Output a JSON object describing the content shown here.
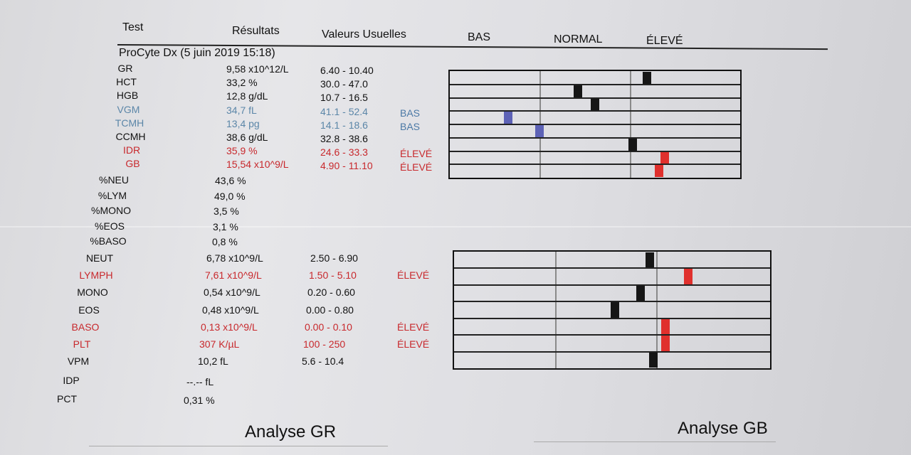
{
  "header": {
    "test": "Test",
    "resultats": "Résultats",
    "valeurs": "Valeurs Usuelles",
    "bas": "BAS",
    "normal": "NORMAL",
    "eleve": "ÉLEVÉ"
  },
  "instrument": "ProCyte Dx (5 juin 2019 15:18)",
  "rbc_rows": [
    {
      "name": "GR",
      "value": "9,58 x10^12/L",
      "range": "6.40 - 10.40",
      "flag": "",
      "status": "normal",
      "marker": 0.68
    },
    {
      "name": "HCT",
      "value": "33,2 %",
      "range": "30.0 - 47.0",
      "flag": "",
      "status": "normal",
      "marker": 0.44
    },
    {
      "name": "HGB",
      "value": "12,8 g/dL",
      "range": "10.7 - 16.5",
      "flag": "",
      "status": "normal",
      "marker": 0.5
    },
    {
      "name": "VGM",
      "value": "34,7 fL",
      "range": "41.1 - 52.4",
      "flag": "BAS",
      "status": "low",
      "marker": 0.2
    },
    {
      "name": "TCMH",
      "value": "13,4 pg",
      "range": "14.1 - 18.6",
      "flag": "BAS",
      "status": "low",
      "marker": 0.31
    },
    {
      "name": "CCMH",
      "value": "38,6 g/dL",
      "range": "32.8 - 38.6",
      "flag": "",
      "status": "normal",
      "marker": 0.63
    },
    {
      "name": "IDR",
      "value": "35,9 %",
      "range": "24.6 - 33.3",
      "flag": "ÉLEVÉ",
      "status": "high",
      "marker": 0.74
    },
    {
      "name": "GB",
      "value": "15,54 x10^9/L",
      "range": "4.90 - 11.10",
      "flag": "ÉLEVÉ",
      "status": "high",
      "marker": 0.72
    }
  ],
  "differential": [
    {
      "name": "%NEU",
      "value": "43,6 %"
    },
    {
      "name": "%LYM",
      "value": "49,0 %"
    },
    {
      "name": "%MONO",
      "value": "3,5 %"
    },
    {
      "name": "%EOS",
      "value": "3,1 %"
    },
    {
      "name": "%BASO",
      "value": "0,8 %"
    }
  ],
  "wbc_rows": [
    {
      "name": "NEUT",
      "value": "6,78 x10^9/L",
      "range": "2.50 - 6.90",
      "flag": "",
      "status": "normal",
      "marker": 0.62
    },
    {
      "name": "LYMPH",
      "value": "7,61 x10^9/L",
      "range": "1.50 - 5.10",
      "flag": "ÉLEVÉ",
      "status": "high",
      "marker": 0.74
    },
    {
      "name": "MONO",
      "value": "0,54 x10^9/L",
      "range": "0.20 - 0.60",
      "flag": "",
      "status": "normal",
      "marker": 0.59
    },
    {
      "name": "EOS",
      "value": "0,48 x10^9/L",
      "range": "0.00 - 0.80",
      "flag": "",
      "status": "normal",
      "marker": 0.51
    },
    {
      "name": "BASO",
      "value": "0,13 x10^9/L",
      "range": "0.00 - 0.10",
      "flag": "ÉLEVÉ",
      "status": "high",
      "marker": 0.67
    },
    {
      "name": "PLT",
      "value": "307 K/µL",
      "range": "100 - 250",
      "flag": "ÉLEVÉ",
      "status": "high",
      "marker": 0.67
    },
    {
      "name": "VPM",
      "value": "10,2 fL",
      "range": "5.6 - 10.4",
      "flag": "",
      "status": "normal",
      "marker": 0.63
    }
  ],
  "extra_rows": [
    {
      "name": "IDP",
      "value": "--.-- fL"
    },
    {
      "name": "PCT",
      "value": "0,31 %"
    }
  ],
  "footer": {
    "left": "Analyse GR",
    "right": "Analyse GB"
  },
  "colors": {
    "high": "#c8282c",
    "low": "#5b86a8",
    "marker_normal": "#161616",
    "marker_high": "#e0302d",
    "marker_low": "#5d62b6"
  }
}
